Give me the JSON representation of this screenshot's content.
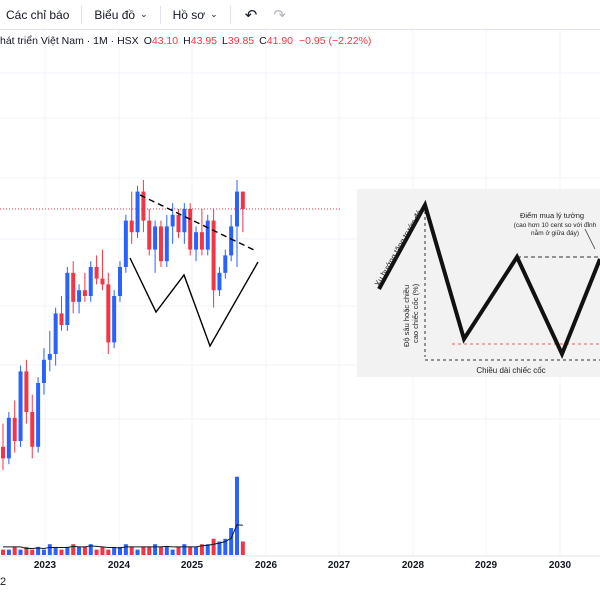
{
  "toolbar": {
    "indicators_label": "Các chỉ báo",
    "chart_label": "Biểu đồ",
    "profile_label": "Hồ sơ",
    "undo_icon": "undo-icon",
    "redo_icon": "redo-icon"
  },
  "legend": {
    "symbol": "hát triển Việt Nam · 1M · HSX",
    "o_key": "O",
    "o_val": "43.10",
    "h_key": "H",
    "h_val": "43.95",
    "l_key": "L",
    "l_val": "39.85",
    "c_key": "C",
    "c_val": "41.90",
    "change": "−0.95 (−2.22%)"
  },
  "colors": {
    "up": "#2962ff",
    "down": "#f23645",
    "pattern_line": "#000000"
  },
  "chart_data": {
    "type": "candlestick",
    "interval": "1M",
    "x_axis_years": [
      "2023",
      "2024",
      "2025",
      "2026",
      "2027",
      "2028",
      "2029",
      "2030"
    ],
    "candles": [
      {
        "o": 20,
        "h": 24,
        "l": 16,
        "c": 18
      },
      {
        "o": 18,
        "h": 26,
        "l": 17,
        "c": 25
      },
      {
        "o": 25,
        "h": 28,
        "l": 19,
        "c": 21
      },
      {
        "o": 21,
        "h": 34,
        "l": 20,
        "c": 33
      },
      {
        "o": 33,
        "h": 35,
        "l": 24,
        "c": 26
      },
      {
        "o": 26,
        "h": 29,
        "l": 18,
        "c": 20
      },
      {
        "o": 20,
        "h": 32,
        "l": 19,
        "c": 31
      },
      {
        "o": 31,
        "h": 37,
        "l": 29,
        "c": 35
      },
      {
        "o": 35,
        "h": 40,
        "l": 33,
        "c": 36
      },
      {
        "o": 36,
        "h": 44,
        "l": 34,
        "c": 43
      },
      {
        "o": 43,
        "h": 46,
        "l": 40,
        "c": 41
      },
      {
        "o": 41,
        "h": 51,
        "l": 40,
        "c": 50
      },
      {
        "o": 50,
        "h": 52,
        "l": 43,
        "c": 45
      },
      {
        "o": 45,
        "h": 48,
        "l": 43,
        "c": 47
      },
      {
        "o": 47,
        "h": 50,
        "l": 45,
        "c": 46
      },
      {
        "o": 46,
        "h": 52,
        "l": 45,
        "c": 51
      },
      {
        "o": 51,
        "h": 53,
        "l": 48,
        "c": 49
      },
      {
        "o": 49,
        "h": 54,
        "l": 47,
        "c": 48
      },
      {
        "o": 48,
        "h": 50,
        "l": 36,
        "c": 38
      },
      {
        "o": 38,
        "h": 47,
        "l": 37,
        "c": 46
      },
      {
        "o": 46,
        "h": 52,
        "l": 45,
        "c": 51
      },
      {
        "o": 51,
        "h": 60,
        "l": 50,
        "c": 59
      },
      {
        "o": 59,
        "h": 64,
        "l": 55,
        "c": 57
      },
      {
        "o": 57,
        "h": 65,
        "l": 56,
        "c": 64
      },
      {
        "o": 64,
        "h": 66,
        "l": 57,
        "c": 59
      },
      {
        "o": 59,
        "h": 61,
        "l": 53,
        "c": 54
      },
      {
        "o": 54,
        "h": 59,
        "l": 50,
        "c": 58
      },
      {
        "o": 58,
        "h": 59,
        "l": 51,
        "c": 52
      },
      {
        "o": 52,
        "h": 60,
        "l": 51,
        "c": 58
      },
      {
        "o": 58,
        "h": 62,
        "l": 55,
        "c": 60
      },
      {
        "o": 60,
        "h": 61,
        "l": 56,
        "c": 57
      },
      {
        "o": 57,
        "h": 62,
        "l": 55,
        "c": 61
      },
      {
        "o": 61,
        "h": 62,
        "l": 53,
        "c": 54
      },
      {
        "o": 54,
        "h": 58,
        "l": 52,
        "c": 57
      },
      {
        "o": 57,
        "h": 61,
        "l": 53,
        "c": 54
      },
      {
        "o": 54,
        "h": 60,
        "l": 53,
        "c": 59
      },
      {
        "o": 59,
        "h": 61,
        "l": 44,
        "c": 47
      },
      {
        "o": 47,
        "h": 51,
        "l": 46,
        "c": 50
      },
      {
        "o": 50,
        "h": 54,
        "l": 49,
        "c": 53
      },
      {
        "o": 53,
        "h": 60,
        "l": 52,
        "c": 58
      },
      {
        "o": 58,
        "h": 66,
        "l": 51,
        "c": 64
      },
      {
        "o": 64,
        "h": 64,
        "l": 57,
        "c": 61
      }
    ],
    "volume": [
      2,
      2,
      3,
      2,
      3,
      2,
      3,
      2,
      4,
      3,
      2,
      3,
      4,
      3,
      3,
      4,
      2,
      3,
      2,
      3,
      3,
      4,
      3,
      2,
      3,
      3,
      4,
      3,
      3,
      2,
      3,
      4,
      3,
      3,
      4,
      4,
      6,
      5,
      6,
      10,
      29,
      5
    ],
    "last_price_line": 61
  },
  "inset": {
    "label_prior_trend": "Xu hướng tăng trước đó",
    "label_ideal_buy": "Điểm mua lý tưởng",
    "label_ideal_buy_note_1": "(cao hơn 10 cent so với đỉnh",
    "label_ideal_buy_note_2": "nằm ở giữa đáy)",
    "label_depth_1": "Độ sâu hoặc chiều",
    "label_depth_2": "cao chiếc cốc (%)",
    "label_length": "Chiều dài chiếc cốc"
  },
  "clock": "2"
}
